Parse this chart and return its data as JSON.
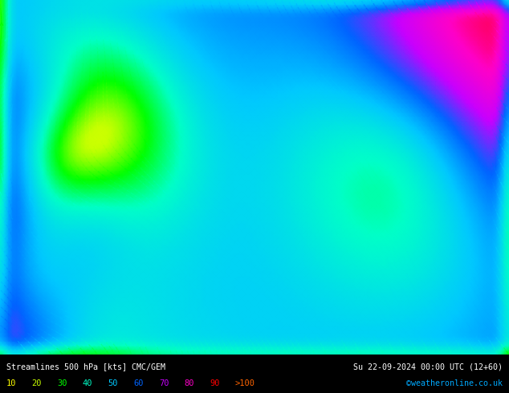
{
  "title_left": "Streamlines 500 hPa [kts] CMC/GEM",
  "title_right": "Su 22-09-2024 00:00 UTC (12+60)",
  "credit": "©weatheronline.co.uk",
  "legend_values": [
    "10",
    "20",
    "30",
    "40",
    "50",
    "60",
    "70",
    "80",
    "90",
    ">100"
  ],
  "legend_colors": [
    "#ffff00",
    "#c8ff00",
    "#00ff00",
    "#00ffc8",
    "#00c8ff",
    "#0064ff",
    "#c800ff",
    "#ff00c8",
    "#ff0000",
    "#ff6400"
  ],
  "colormap_speeds": [
    0,
    10,
    20,
    30,
    40,
    50,
    60,
    70,
    80,
    90,
    100
  ],
  "colormap_colors": [
    "#f0f0f0",
    "#ffff00",
    "#c8ff00",
    "#00ff00",
    "#00ffc8",
    "#00c8ff",
    "#0064ff",
    "#c800ff",
    "#ff00c8",
    "#ff0000",
    "#ff6400"
  ],
  "map_extent_lon": [
    -5,
    35
  ],
  "map_extent_lat": [
    54,
    73
  ],
  "figsize": [
    6.34,
    4.9
  ],
  "dpi": 100,
  "bottom_bar_color": "#000000",
  "bottom_bar_height": 0.098
}
